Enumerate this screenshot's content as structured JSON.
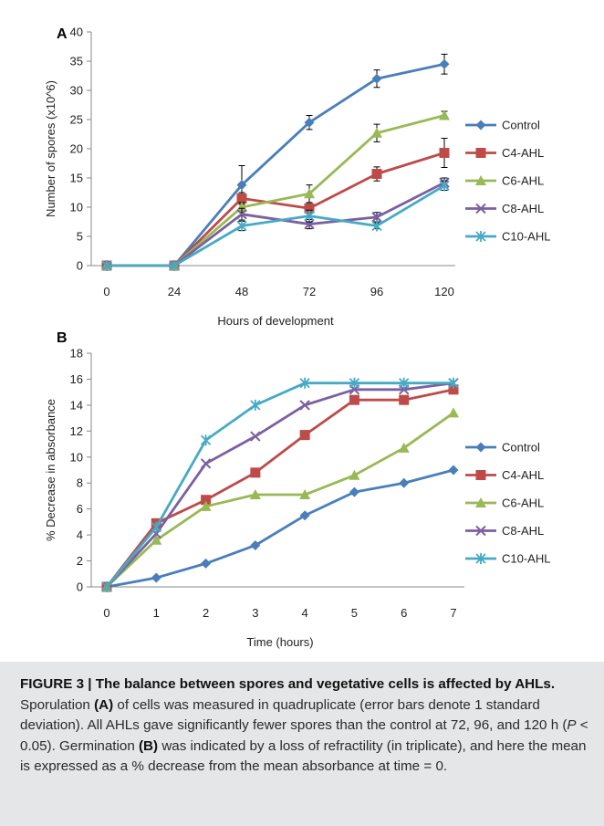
{
  "chart_data": [
    {
      "panel": "A",
      "type": "line",
      "xlabel": "Hours of development",
      "ylabel": "Number of spores (x10^6)",
      "x": [
        0,
        24,
        48,
        72,
        96,
        120
      ],
      "xticks": [
        "0",
        "24",
        "48",
        "72",
        "96",
        "120"
      ],
      "ylim": [
        0,
        40
      ],
      "yticks": [
        "0",
        "5",
        "10",
        "15",
        "20",
        "25",
        "30",
        "35",
        "40"
      ],
      "grid": false,
      "legend_position": "right",
      "series": [
        {
          "name": "Control",
          "color": "#4a7ebb",
          "marker": "diamond",
          "values": [
            0,
            0,
            13.8,
            24.5,
            32,
            34.5
          ],
          "errors": [
            0,
            0,
            3.3,
            1.2,
            1.5,
            1.7
          ]
        },
        {
          "name": "C4-AHL",
          "color": "#be4b48",
          "marker": "square",
          "values": [
            0,
            0,
            11.5,
            9.8,
            15.7,
            19.3
          ],
          "errors": [
            0,
            0,
            1.0,
            0.8,
            1.2,
            2.5
          ]
        },
        {
          "name": "C6-AHL",
          "color": "#98b954",
          "marker": "triangle",
          "values": [
            0,
            0,
            10,
            12.3,
            22.7,
            25.7
          ],
          "errors": [
            0,
            0,
            0.8,
            1.5,
            1.5,
            0.7
          ]
        },
        {
          "name": "C8-AHL",
          "color": "#7d60a0",
          "marker": "x",
          "values": [
            0,
            0,
            8.8,
            7.1,
            8.3,
            14.2
          ],
          "errors": [
            0,
            0,
            1.0,
            0.8,
            0.8,
            0.8
          ]
        },
        {
          "name": "C10-AHL",
          "color": "#46aac5",
          "marker": "star",
          "values": [
            0,
            0,
            6.8,
            8.5,
            6.8,
            13.7
          ],
          "errors": [
            0,
            0,
            0.8,
            1.0,
            0.5,
            0.8
          ]
        }
      ]
    },
    {
      "panel": "B",
      "type": "line",
      "xlabel": "Time (hours)",
      "ylabel": "% Decrease in absorbance",
      "x": [
        0,
        1,
        2,
        3,
        4,
        5,
        6,
        7
      ],
      "xticks": [
        "0",
        "1",
        "2",
        "3",
        "4",
        "5",
        "6",
        "7"
      ],
      "ylim": [
        0,
        18
      ],
      "yticks": [
        "0",
        "2",
        "4",
        "6",
        "8",
        "10",
        "12",
        "14",
        "16",
        "18"
      ],
      "grid": false,
      "legend_position": "right",
      "series": [
        {
          "name": "Control",
          "color": "#4a7ebb",
          "marker": "diamond",
          "values": [
            0,
            0.7,
            1.8,
            3.2,
            5.5,
            7.3,
            8,
            9
          ]
        },
        {
          "name": "C4-AHL",
          "color": "#be4b48",
          "marker": "square",
          "values": [
            0,
            4.9,
            6.7,
            8.8,
            11.7,
            14.4,
            14.4,
            15.2
          ]
        },
        {
          "name": "C6-AHL",
          "color": "#98b954",
          "marker": "triangle",
          "values": [
            0,
            3.6,
            6.2,
            7.1,
            7.1,
            8.6,
            10.7,
            13.4
          ]
        },
        {
          "name": "C8-AHL",
          "color": "#7d60a0",
          "marker": "x",
          "values": [
            0,
            4.1,
            9.5,
            11.6,
            14,
            15.2,
            15.2,
            15.7
          ]
        },
        {
          "name": "C10-AHL",
          "color": "#46aac5",
          "marker": "star",
          "values": [
            0,
            4.6,
            11.3,
            14,
            15.7,
            15.7,
            15.7,
            15.7
          ]
        }
      ]
    }
  ],
  "caption": {
    "label": "FIGURE 3 | The balance between spores and vegetative cells is affected by AHLs.",
    "t1": " Sporulation ",
    "a": "(A)",
    "t2": " of cells was measured in quadruplicate (error bars denote 1 standard deviation). All AHLs gave significantly fewer spores than the control at 72, 96, and 120 h (",
    "p": "P",
    "t3": " < 0.05). Germination ",
    "b": "(B)",
    "t4": " was indicated by a loss of refractility (in triplicate), and here the mean is expressed as a % decrease from the mean absorbance at time = 0."
  }
}
